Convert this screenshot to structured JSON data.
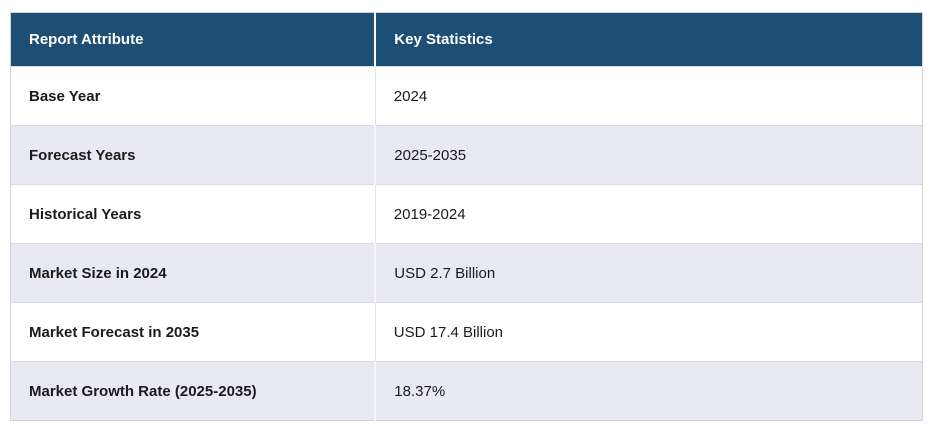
{
  "colors": {
    "header_bg": "#1F4E74",
    "header_text": "#FFFFFF",
    "row_bg": "#FFFFFF",
    "row_alt_bg": "#E8E9F3",
    "body_text": "#1B1B1B",
    "border": "#D9D9E0"
  },
  "table": {
    "columns": [
      {
        "label": "Report Attribute"
      },
      {
        "label": "Key Statistics"
      }
    ],
    "rows": [
      {
        "attribute": "Base Year",
        "value": "2024"
      },
      {
        "attribute": "Forecast Years",
        "value": "2025-2035"
      },
      {
        "attribute": "Historical Years",
        "value": "2019-2024"
      },
      {
        "attribute": "Market Size in 2024",
        "value": "USD 2.7 Billion"
      },
      {
        "attribute": "Market Forecast in 2035",
        "value": "USD 17.4 Billion"
      },
      {
        "attribute": "Market Growth Rate (2025-2035)",
        "value": "18.37%"
      }
    ]
  },
  "chart_data": {
    "type": "table",
    "title": "Report Attribute / Key Statistics",
    "columns": [
      "Report Attribute",
      "Key Statistics"
    ],
    "rows": [
      [
        "Base Year",
        "2024"
      ],
      [
        "Forecast Years",
        "2025-2035"
      ],
      [
        "Historical Years",
        "2019-2024"
      ],
      [
        "Market Size in 2024",
        "USD 2.7 Billion"
      ],
      [
        "Market Forecast in 2035",
        "USD 17.4 Billion"
      ],
      [
        "Market Growth Rate (2025-2035)",
        "18.37%"
      ]
    ]
  }
}
